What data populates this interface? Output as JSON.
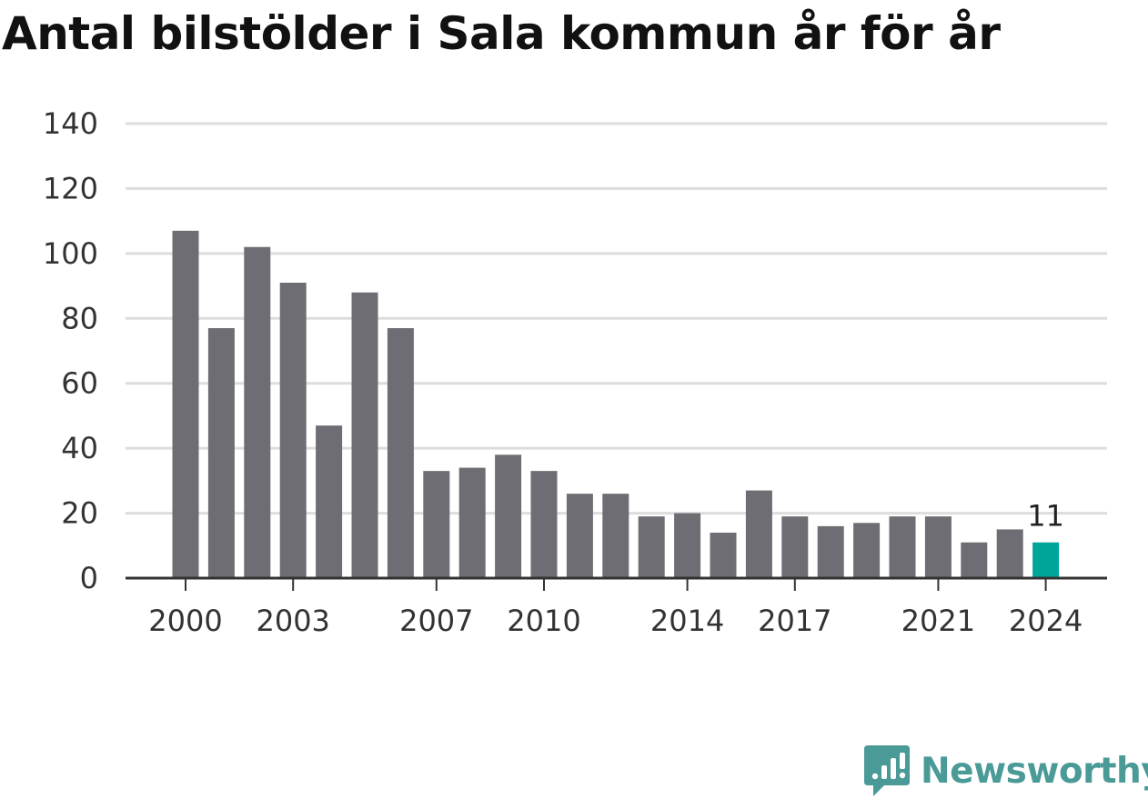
{
  "chart_data": {
    "type": "bar",
    "title": "Antal bilstölder i Sala kommun år för år",
    "categories": [
      "2000",
      "2001",
      "2002",
      "2003",
      "2004",
      "2005",
      "2006",
      "2007",
      "2008",
      "2009",
      "2010",
      "2011",
      "2012",
      "2013",
      "2014",
      "2015",
      "2016",
      "2017",
      "2018",
      "2019",
      "2020",
      "2021",
      "2022",
      "2023",
      "2024"
    ],
    "values": [
      107,
      77,
      102,
      91,
      47,
      88,
      77,
      33,
      34,
      38,
      33,
      26,
      26,
      19,
      20,
      14,
      27,
      19,
      16,
      17,
      19,
      19,
      11,
      15,
      11
    ],
    "x_tick_labels": [
      "2000",
      "2003",
      "2007",
      "2010",
      "2014",
      "2017",
      "2021",
      "2024"
    ],
    "y_ticks": [
      0,
      20,
      40,
      60,
      80,
      100,
      120,
      140
    ],
    "ylim": [
      0,
      140
    ],
    "grid": true,
    "highlight": {
      "category": "2024",
      "label": "11"
    },
    "colors": {
      "bar": "#6e6d73",
      "highlight": "#00a59a",
      "grid": "#dddddd",
      "axis": "#333333"
    }
  },
  "brand": {
    "name": "Newsworthy",
    "logo_icon": "bar-chart-speech-bubble-icon",
    "color": "#4a9a98"
  }
}
